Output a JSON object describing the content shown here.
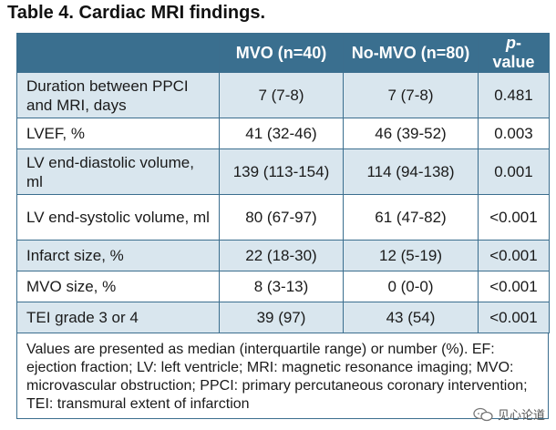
{
  "title": "Table 4. Cardiac MRI findings.",
  "header": {
    "col0": "",
    "col1": "MVO (n=40)",
    "col2": "No-MVO (n=80)",
    "col3_italic": "p",
    "col3_rest": "-value"
  },
  "rows": [
    {
      "label": "Duration between PPCI and MRI, days",
      "mvo": "7 (7-8)",
      "no_mvo": "7 (7-8)",
      "p": "0.481"
    },
    {
      "label": "LVEF, %",
      "mvo": "41 (32-46)",
      "no_mvo": "46 (39-52)",
      "p": "0.003"
    },
    {
      "label": "LV end-diastolic volume, ml",
      "mvo": "139 (113-154)",
      "no_mvo": "114 (94-138)",
      "p": "0.001"
    },
    {
      "label": "LV end-systolic volume, ml",
      "mvo": "80 (67-97)",
      "no_mvo": "61 (47-82)",
      "p": "<0.001"
    },
    {
      "label": "Infarct size, %",
      "mvo": "22 (18-30)",
      "no_mvo": "12 (5-19)",
      "p": "<0.001"
    },
    {
      "label": "MVO size, %",
      "mvo": "8 (3-13)",
      "no_mvo": "0 (0-0)",
      "p": "<0.001"
    },
    {
      "label": "TEI grade 3 or 4",
      "mvo": "39 (97)",
      "no_mvo": "43 (54)",
      "p": "<0.001"
    }
  ],
  "footnote": "Values are presented as median (interquartile range) or number (%). EF: ejection fraction; LV: left ventricle; MRI: magnetic resonance imaging; MVO: microvascular obstruction; PPCI: primary percutaneous coronary intervention; TEI: transmural extent of infarction",
  "watermark": "见心论道",
  "colors": {
    "header_bg": "#3a6f8f",
    "shade_bg": "#d9e6ee",
    "border": "#3b6e8e"
  }
}
